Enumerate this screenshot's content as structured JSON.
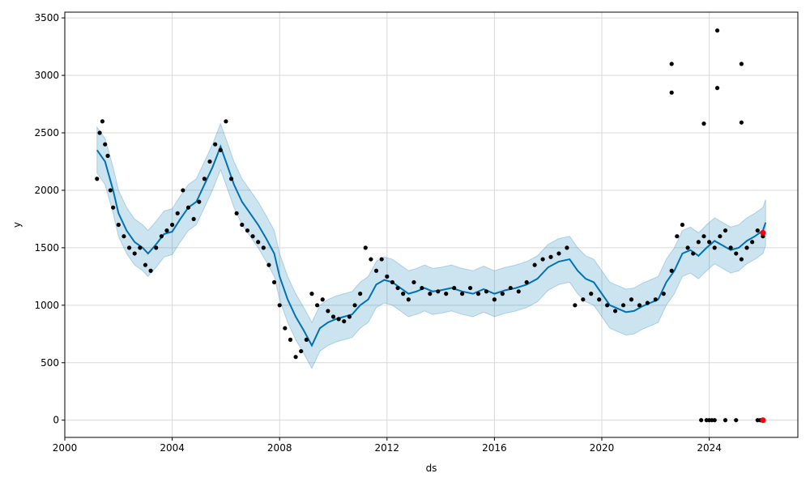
{
  "chart_data": {
    "type": "line",
    "xlabel": "ds",
    "ylabel": "y",
    "xlim": [
      2000.0,
      2027.3
    ],
    "ylim": [
      -150,
      3550
    ],
    "x_ticks": [
      2000,
      2004,
      2008,
      2012,
      2016,
      2020,
      2024
    ],
    "x_tick_labels": [
      "2000",
      "2004",
      "2008",
      "2012",
      "2016",
      "2020",
      "2024"
    ],
    "y_ticks": [
      0,
      500,
      1000,
      1500,
      2000,
      2500,
      3000,
      3500
    ],
    "y_tick_labels": [
      "0",
      "500",
      "1000",
      "1500",
      "2000",
      "2500",
      "3000",
      "3500"
    ],
    "grid": true,
    "colors": {
      "forecast": "#0072B2",
      "interval": "#0072B2",
      "observed": "#000000",
      "highlight": "#ff0000"
    },
    "series": [
      {
        "kind": "line",
        "x": [
          2001.2,
          2001.5,
          2001.8,
          2002.0,
          2002.3,
          2002.6,
          2002.9,
          2003.1,
          2003.4,
          2003.7,
          2004.0,
          2004.3,
          2004.6,
          2004.9,
          2005.2,
          2005.5,
          2005.8,
          2006.0,
          2006.3,
          2006.6,
          2006.9,
          2007.2,
          2007.5,
          2007.8,
          2008.0,
          2008.3,
          2008.6,
          2008.9,
          2009.2,
          2009.5,
          2009.8,
          2010.1,
          2010.4,
          2010.7,
          2011.0,
          2011.3,
          2011.6,
          2011.9,
          2012.2,
          2012.5,
          2012.8,
          2013.1,
          2013.4,
          2013.7,
          2014.0,
          2014.4,
          2014.8,
          2015.2,
          2015.6,
          2016.0,
          2016.4,
          2016.8,
          2017.2,
          2017.6,
          2018.0,
          2018.4,
          2018.8,
          2019.1,
          2019.4,
          2019.7,
          2020.0,
          2020.3,
          2020.6,
          2020.9,
          2021.2,
          2021.5,
          2021.8,
          2022.1,
          2022.4,
          2022.7,
          2023.0,
          2023.3,
          2023.6,
          2023.9,
          2024.2,
          2024.5,
          2024.8,
          2025.1,
          2025.4,
          2025.7,
          2026.0,
          2026.1
        ],
        "y": [
          2350,
          2250,
          2000,
          1800,
          1650,
          1550,
          1500,
          1450,
          1530,
          1620,
          1640,
          1750,
          1850,
          1900,
          2050,
          2200,
          2380,
          2250,
          2050,
          1900,
          1800,
          1700,
          1580,
          1450,
          1250,
          1050,
          900,
          780,
          650,
          800,
          850,
          880,
          900,
          920,
          1000,
          1050,
          1180,
          1220,
          1200,
          1150,
          1100,
          1120,
          1150,
          1120,
          1130,
          1150,
          1120,
          1100,
          1140,
          1100,
          1130,
          1150,
          1180,
          1230,
          1330,
          1380,
          1400,
          1300,
          1230,
          1200,
          1100,
          1000,
          970,
          940,
          950,
          990,
          1020,
          1050,
          1200,
          1300,
          1450,
          1480,
          1430,
          1500,
          1560,
          1520,
          1480,
          1500,
          1560,
          1600,
          1650,
          1720
        ]
      },
      {
        "kind": "interval",
        "x": [
          2001.2,
          2001.5,
          2001.8,
          2002.0,
          2002.3,
          2002.6,
          2002.9,
          2003.1,
          2003.4,
          2003.7,
          2004.0,
          2004.3,
          2004.6,
          2004.9,
          2005.2,
          2005.5,
          2005.8,
          2006.0,
          2006.3,
          2006.6,
          2006.9,
          2007.2,
          2007.5,
          2007.8,
          2008.0,
          2008.3,
          2008.6,
          2008.9,
          2009.2,
          2009.5,
          2009.8,
          2010.1,
          2010.4,
          2010.7,
          2011.0,
          2011.3,
          2011.6,
          2011.9,
          2012.2,
          2012.5,
          2012.8,
          2013.1,
          2013.4,
          2013.7,
          2014.0,
          2014.4,
          2014.8,
          2015.2,
          2015.6,
          2016.0,
          2016.4,
          2016.8,
          2017.2,
          2017.6,
          2018.0,
          2018.4,
          2018.8,
          2019.1,
          2019.4,
          2019.7,
          2020.0,
          2020.3,
          2020.6,
          2020.9,
          2021.2,
          2021.5,
          2021.8,
          2022.1,
          2022.4,
          2022.7,
          2023.0,
          2023.3,
          2023.6,
          2023.9,
          2024.2,
          2024.5,
          2024.8,
          2025.1,
          2025.4,
          2025.7,
          2026.0,
          2026.1
        ],
        "y_lower": [
          2150,
          2050,
          1800,
          1600,
          1450,
          1350,
          1300,
          1250,
          1330,
          1420,
          1440,
          1550,
          1650,
          1700,
          1850,
          2000,
          2180,
          2050,
          1850,
          1700,
          1600,
          1500,
          1380,
          1250,
          1050,
          850,
          700,
          580,
          450,
          600,
          650,
          680,
          700,
          720,
          800,
          850,
          980,
          1020,
          1000,
          950,
          900,
          920,
          950,
          920,
          930,
          950,
          920,
          900,
          940,
          900,
          930,
          950,
          980,
          1030,
          1130,
          1180,
          1200,
          1100,
          1030,
          1000,
          900,
          800,
          770,
          740,
          750,
          790,
          820,
          850,
          1000,
          1100,
          1250,
          1280,
          1230,
          1300,
          1360,
          1320,
          1280,
          1300,
          1360,
          1400,
          1450,
          1520
        ],
        "y_upper": [
          2550,
          2450,
          2200,
          2000,
          1850,
          1750,
          1700,
          1650,
          1730,
          1820,
          1840,
          1950,
          2050,
          2100,
          2250,
          2400,
          2580,
          2450,
          2250,
          2100,
          2000,
          1900,
          1780,
          1650,
          1450,
          1250,
          1100,
          980,
          850,
          1000,
          1050,
          1080,
          1100,
          1120,
          1200,
          1250,
          1380,
          1420,
          1400,
          1350,
          1300,
          1320,
          1350,
          1320,
          1330,
          1350,
          1320,
          1300,
          1340,
          1300,
          1330,
          1350,
          1380,
          1430,
          1530,
          1580,
          1600,
          1500,
          1430,
          1400,
          1300,
          1200,
          1170,
          1140,
          1150,
          1190,
          1220,
          1250,
          1400,
          1500,
          1650,
          1680,
          1630,
          1700,
          1760,
          1720,
          1680,
          1700,
          1760,
          1800,
          1850,
          1920
        ]
      },
      {
        "kind": "scatter",
        "x": [
          2001.2,
          2001.3,
          2001.4,
          2001.5,
          2001.6,
          2001.7,
          2001.8,
          2002.0,
          2002.2,
          2002.4,
          2002.6,
          2002.8,
          2003.0,
          2003.2,
          2003.4,
          2003.6,
          2003.8,
          2004.0,
          2004.2,
          2004.4,
          2004.6,
          2004.8,
          2005.0,
          2005.2,
          2005.4,
          2005.6,
          2005.8,
          2006.0,
          2006.2,
          2006.4,
          2006.6,
          2006.8,
          2007.0,
          2007.2,
          2007.4,
          2007.6,
          2007.8,
          2008.0,
          2008.2,
          2008.4,
          2008.6,
          2008.8,
          2009.0,
          2009.2,
          2009.4,
          2009.6,
          2009.8,
          2010.0,
          2010.2,
          2010.4,
          2010.6,
          2010.8,
          2011.0,
          2011.2,
          2011.4,
          2011.6,
          2011.8,
          2012.0,
          2012.2,
          2012.4,
          2012.6,
          2012.8,
          2013.0,
          2013.3,
          2013.6,
          2013.9,
          2014.2,
          2014.5,
          2014.8,
          2015.1,
          2015.4,
          2015.7,
          2016.0,
          2016.3,
          2016.6,
          2016.9,
          2017.2,
          2017.5,
          2017.8,
          2018.1,
          2018.4,
          2018.7,
          2019.0,
          2019.3,
          2019.6,
          2019.9,
          2020.2,
          2020.5,
          2020.8,
          2021.1,
          2021.4,
          2021.7,
          2022.0,
          2022.3,
          2022.6,
          2022.8,
          2023.0,
          2023.2,
          2023.4,
          2023.6,
          2023.8,
          2024.0,
          2024.2,
          2024.4,
          2024.6,
          2024.8,
          2025.0,
          2025.2,
          2025.4,
          2025.6,
          2025.8,
          2026.0,
          2022.6,
          2022.6,
          2023.8,
          2024.3,
          2024.3,
          2025.2,
          2025.2,
          2023.7,
          2023.9,
          2024.0,
          2024.1,
          2024.2,
          2024.6,
          2025.0,
          2025.8,
          2025.9
        ],
        "y": [
          2100,
          2500,
          2600,
          2400,
          2300,
          2000,
          1850,
          1700,
          1600,
          1500,
          1450,
          1500,
          1350,
          1300,
          1500,
          1600,
          1650,
          1700,
          1800,
          2000,
          1850,
          1750,
          1900,
          2100,
          2250,
          2400,
          2350,
          2600,
          2100,
          1800,
          1700,
          1650,
          1600,
          1550,
          1500,
          1350,
          1200,
          1000,
          800,
          700,
          550,
          600,
          700,
          1100,
          1000,
          1050,
          950,
          900,
          880,
          860,
          900,
          1000,
          1100,
          1500,
          1400,
          1300,
          1400,
          1250,
          1200,
          1150,
          1100,
          1050,
          1200,
          1150,
          1100,
          1120,
          1100,
          1150,
          1100,
          1150,
          1100,
          1120,
          1050,
          1100,
          1150,
          1120,
          1200,
          1350,
          1400,
          1420,
          1450,
          1500,
          1000,
          1050,
          1100,
          1050,
          1000,
          950,
          1000,
          1050,
          1000,
          1020,
          1050,
          1100,
          1300,
          1600,
          1700,
          1500,
          1450,
          1550,
          1600,
          1550,
          1500,
          1600,
          1650,
          1500,
          1450,
          1400,
          1500,
          1550,
          1650,
          1600,
          3100,
          2850,
          2580,
          3390,
          2890,
          3100,
          2590,
          0,
          0,
          0,
          0,
          0,
          0,
          0,
          0,
          0
        ]
      },
      {
        "kind": "highlight",
        "x": [
          2026.0,
          2026.0
        ],
        "y": [
          1630,
          0
        ]
      }
    ]
  }
}
